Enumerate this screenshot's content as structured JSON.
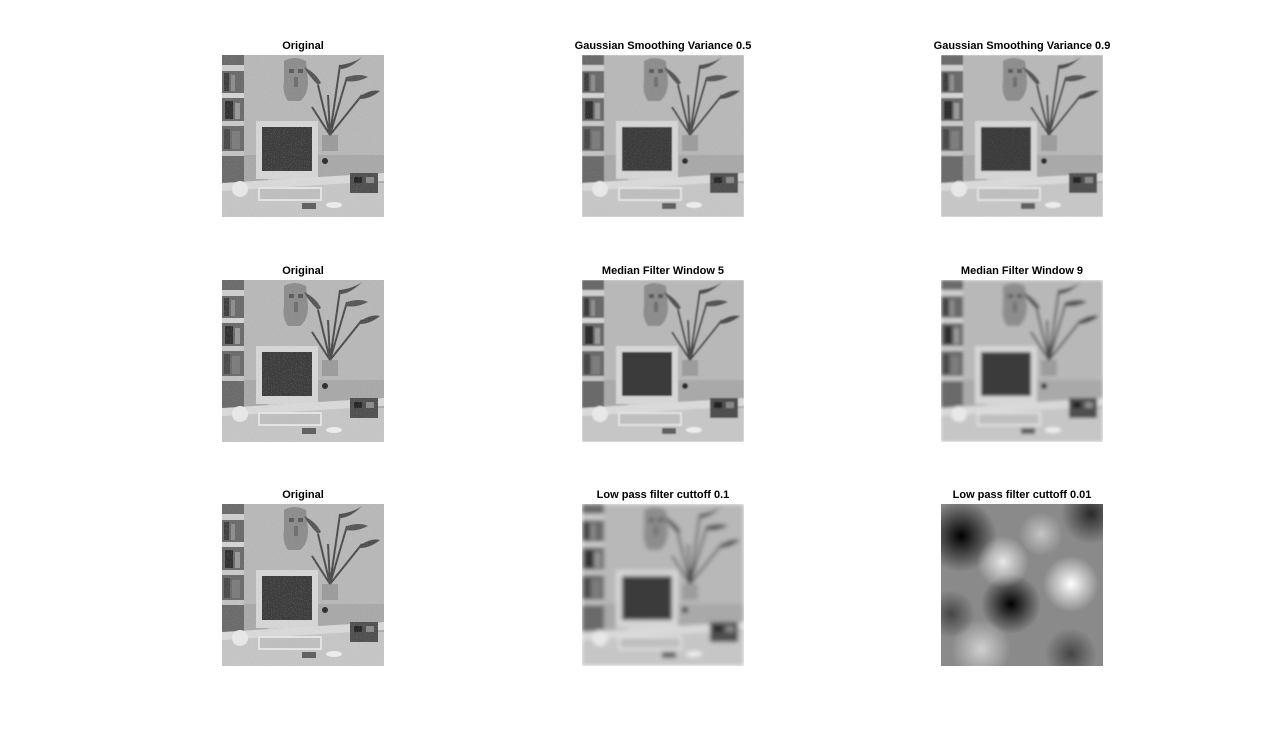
{
  "figure": {
    "panels": [
      {
        "id": "noisy-original-1",
        "title": "Original",
        "style": "noisy"
      },
      {
        "id": "gaussian-05",
        "title": "Gaussian Smoothing Variance 0.5",
        "style": "gauss1"
      },
      {
        "id": "gaussian-09",
        "title": "Gaussian Smoothing Variance 0.9",
        "style": "gauss2"
      },
      {
        "id": "noisy-original-2",
        "title": "Original",
        "style": "noisy"
      },
      {
        "id": "median-5",
        "title": "Median Filter Window 5",
        "style": "median5"
      },
      {
        "id": "median-9",
        "title": "Median Filter Window 9",
        "style": "median9"
      },
      {
        "id": "noisy-original-3",
        "title": "Original",
        "style": "noisy"
      },
      {
        "id": "lowpass-01",
        "title": "Low pass filter cuttoff 0.1",
        "style": "lp1"
      },
      {
        "id": "lowpass-001",
        "title": "Low pass filter cuttoff 0.01",
        "style": "lp2"
      }
    ]
  }
}
